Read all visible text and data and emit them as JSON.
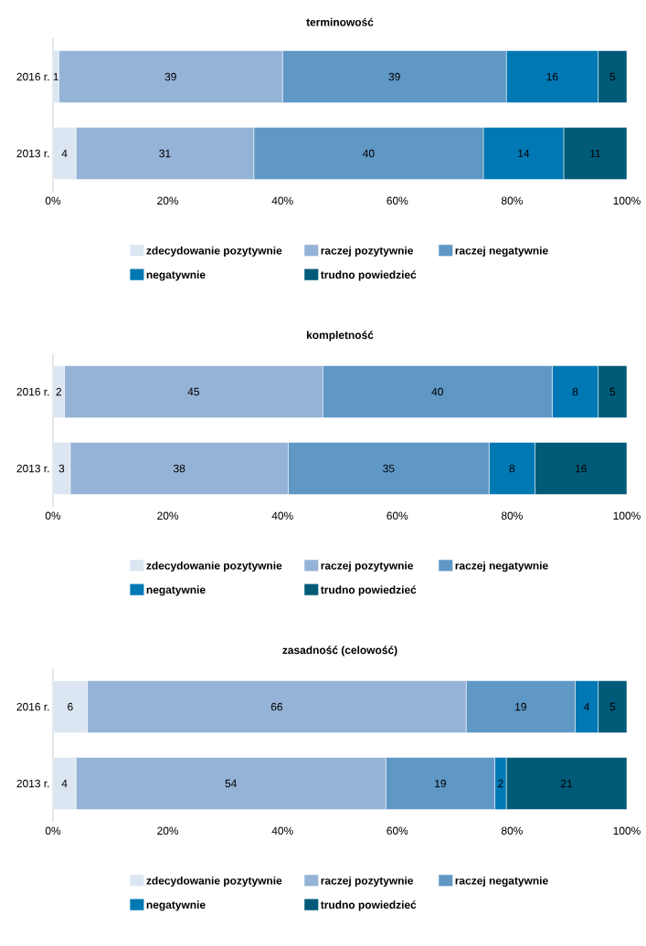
{
  "chart_data": [
    {
      "type": "bar",
      "orientation": "horizontal",
      "stacked": true,
      "title": "terminowość",
      "categories": [
        "2016 r.",
        "2013 r."
      ],
      "series": [
        {
          "name": "zdecydowanie pozytywnie",
          "color": "#dce6f2",
          "values": [
            1,
            4
          ]
        },
        {
          "name": "raczej pozytywnie",
          "color": "#95b3d7",
          "values": [
            39,
            31
          ]
        },
        {
          "name": "raczej negatywnie",
          "color": "#5f97c5",
          "values": [
            39,
            40
          ]
        },
        {
          "name": "negatywnie",
          "color": "#0078b4",
          "values": [
            16,
            14
          ]
        },
        {
          "name": "trudno powiedzieć",
          "color": "#005a78",
          "values": [
            5,
            11
          ]
        }
      ],
      "xlim": [
        0,
        100
      ],
      "xticks": [
        {
          "value": 0,
          "label": "0%"
        },
        {
          "value": 20,
          "label": "20%"
        },
        {
          "value": 40,
          "label": "40%"
        },
        {
          "value": 60,
          "label": "60%"
        },
        {
          "value": 80,
          "label": "80%"
        },
        {
          "value": 100,
          "label": "100%"
        }
      ],
      "data_labels": true,
      "legend": "bottom"
    },
    {
      "type": "bar",
      "orientation": "horizontal",
      "stacked": true,
      "title": "kompletność",
      "categories": [
        "2016 r.",
        "2013 r."
      ],
      "series": [
        {
          "name": "zdecydowanie pozytywnie",
          "color": "#dce6f2",
          "values": [
            2,
            3
          ]
        },
        {
          "name": "raczej pozytywnie",
          "color": "#95b3d7",
          "values": [
            45,
            38
          ]
        },
        {
          "name": "raczej negatywnie",
          "color": "#5f97c5",
          "values": [
            40,
            35
          ]
        },
        {
          "name": "negatywnie",
          "color": "#0078b4",
          "values": [
            8,
            8
          ]
        },
        {
          "name": "trudno powiedzieć",
          "color": "#005a78",
          "values": [
            5,
            16
          ]
        }
      ],
      "xlim": [
        0,
        100
      ],
      "xticks": [
        {
          "value": 0,
          "label": "0%"
        },
        {
          "value": 20,
          "label": "20%"
        },
        {
          "value": 40,
          "label": "40%"
        },
        {
          "value": 60,
          "label": "60%"
        },
        {
          "value": 80,
          "label": "80%"
        },
        {
          "value": 100,
          "label": "100%"
        }
      ],
      "data_labels": true,
      "legend": "bottom"
    },
    {
      "type": "bar",
      "orientation": "horizontal",
      "stacked": true,
      "title": "zasadność (celowość)",
      "categories": [
        "2016 r.",
        "2013 r."
      ],
      "series": [
        {
          "name": "zdecydowanie pozytywnie",
          "color": "#dce6f2",
          "values": [
            6,
            4
          ]
        },
        {
          "name": "raczej pozytywnie",
          "color": "#95b3d7",
          "values": [
            66,
            54
          ]
        },
        {
          "name": "raczej negatywnie",
          "color": "#5f97c5",
          "values": [
            19,
            19
          ]
        },
        {
          "name": "negatywnie",
          "color": "#0078b4",
          "values": [
            4,
            2
          ]
        },
        {
          "name": "trudno powiedzieć",
          "color": "#005a78",
          "values": [
            5,
            21
          ]
        }
      ],
      "xlim": [
        0,
        100
      ],
      "xticks": [
        {
          "value": 0,
          "label": "0%"
        },
        {
          "value": 20,
          "label": "20%"
        },
        {
          "value": 40,
          "label": "40%"
        },
        {
          "value": 60,
          "label": "60%"
        },
        {
          "value": 80,
          "label": "80%"
        },
        {
          "value": 100,
          "label": "100%"
        }
      ],
      "data_labels": true,
      "legend": "bottom"
    }
  ]
}
